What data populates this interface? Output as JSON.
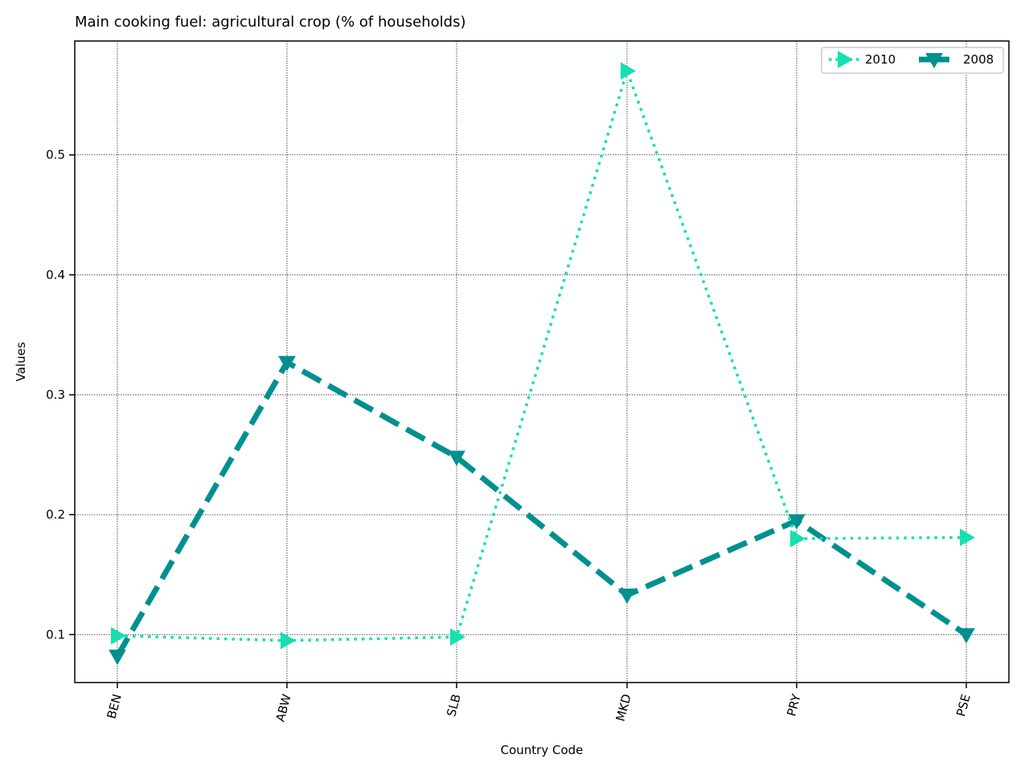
{
  "chart_data": {
    "type": "line",
    "title": "Main cooking fuel: agricultural crop (% of households)",
    "xlabel": "Country Code",
    "ylabel": "Values",
    "categories": [
      "BEN",
      "ABW",
      "SLB",
      "MKD",
      "PRY",
      "PSE"
    ],
    "ylim": [
      0.06,
      0.595
    ],
    "yticks": [
      0.1,
      0.2,
      0.3,
      0.4,
      0.5
    ],
    "ytick_labels": [
      "0.1",
      "0.2",
      "0.3",
      "0.4",
      "0.5"
    ],
    "grid": true,
    "legend_position": "top-right",
    "series": [
      {
        "name": "2010",
        "color": "#14e0b0",
        "line_style": "dotted",
        "marker": "triangle-right",
        "values": [
          0.099,
          0.095,
          0.098,
          0.57,
          0.18,
          0.181
        ]
      },
      {
        "name": "2008",
        "color": "#009090",
        "line_style": "dashed",
        "marker": "triangle-down",
        "values": [
          0.082,
          0.327,
          0.248,
          0.133,
          0.195,
          0.1
        ]
      }
    ]
  }
}
